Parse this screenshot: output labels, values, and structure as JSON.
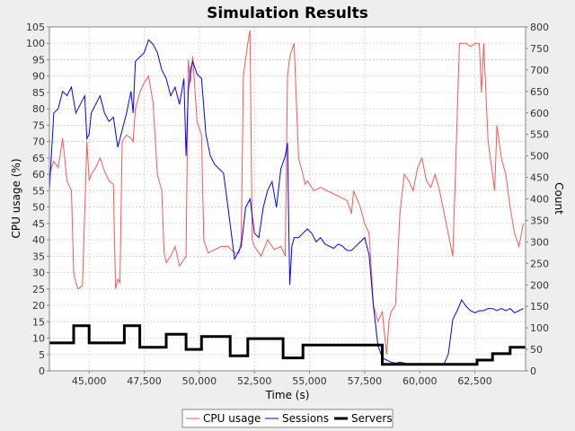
{
  "chart_data": {
    "type": "line",
    "title": "Simulation Results",
    "xlabel": "Time (s)",
    "ylabel_left": "CPU usage (%)",
    "ylabel_right": "Count",
    "xlim": [
      43200,
      64800
    ],
    "ylim_left": [
      0,
      105
    ],
    "ylim_right": [
      0,
      800
    ],
    "x_ticks": [
      "45,000",
      "47,500",
      "50,000",
      "52,500",
      "55,000",
      "57,500",
      "60,000",
      "62,500"
    ],
    "x_tick_values": [
      45000,
      47500,
      50000,
      52500,
      55000,
      57500,
      60000,
      62500
    ],
    "y_left_ticks": [
      "0",
      "5",
      "10",
      "15",
      "20",
      "25",
      "30",
      "35",
      "40",
      "45",
      "50",
      "55",
      "60",
      "65",
      "70",
      "75",
      "80",
      "85",
      "90",
      "95",
      "100",
      "105"
    ],
    "y_right_ticks": [
      "0",
      "50",
      "100",
      "150",
      "200",
      "250",
      "300",
      "350",
      "400",
      "450",
      "500",
      "550",
      "600",
      "650",
      "700",
      "750",
      "800"
    ],
    "grid": true,
    "legend_position": "bottom",
    "series": [
      {
        "name": "CPU usage",
        "color": "#ff5555",
        "axis": "left",
        "width": 1,
        "x": [
          43200,
          43400,
          43600,
          43800,
          44000,
          44200,
          44300,
          44400,
          44500,
          44700,
          44900,
          45000,
          45100,
          45300,
          45500,
          45700,
          45900,
          46100,
          46200,
          46300,
          46400,
          46500,
          46700,
          46900,
          47000,
          47100,
          47300,
          47500,
          47700,
          47900,
          48100,
          48300,
          48400,
          48500,
          48700,
          48900,
          49100,
          49300,
          49400,
          49500,
          49600,
          49700,
          49900,
          50100,
          50200,
          50300,
          50400,
          50700,
          51000,
          51300,
          51600,
          51800,
          51900,
          52000,
          52200,
          52300,
          52400,
          52500,
          52800,
          53100,
          53400,
          53700,
          53900,
          54000,
          54100,
          54300,
          54500,
          54700,
          54800,
          54900,
          55200,
          55500,
          55800,
          56100,
          56400,
          56700,
          56900,
          57000,
          57300,
          57500,
          57700,
          57900,
          58100,
          58300,
          58500,
          58600,
          58700,
          58900,
          59100,
          59300,
          59500,
          59700,
          59900,
          60100,
          60300,
          60500,
          60700,
          60900,
          61200,
          61500,
          61800,
          62100,
          62300,
          62500,
          62700,
          62800,
          62900,
          63100,
          63300,
          63400,
          63500,
          63700,
          63900,
          64100,
          64300,
          64500,
          64700
        ],
        "y": [
          60,
          64,
          62,
          71,
          58,
          55,
          30,
          27,
          25,
          26,
          70,
          58,
          60,
          62,
          65,
          61,
          58,
          57,
          25,
          28,
          27,
          70,
          72,
          71,
          70,
          80,
          85,
          88,
          90,
          82,
          60,
          55,
          36,
          33,
          35,
          38,
          32,
          34,
          35,
          95,
          88,
          96,
          76,
          72,
          40,
          38,
          36,
          37,
          38,
          38,
          36,
          36,
          40,
          90,
          100,
          104,
          40,
          38,
          35,
          40,
          37,
          38,
          35,
          90,
          96,
          100,
          65,
          60,
          57,
          58,
          55,
          56,
          55,
          54,
          53,
          52,
          48,
          55,
          50,
          45,
          42,
          20,
          15,
          18,
          5,
          15,
          18,
          20,
          48,
          60,
          58,
          55,
          62,
          65,
          58,
          56,
          60,
          55,
          45,
          35,
          100,
          100,
          99,
          100,
          100,
          85,
          100,
          70,
          60,
          55,
          75,
          65,
          60,
          50,
          42,
          38,
          45
        ],
        "x_stride": 1
      },
      {
        "name": "Sessions",
        "color": "#0000ff",
        "axis": "right",
        "width": 1,
        "x": [
          43200,
          43400,
          43600,
          43800,
          44000,
          44200,
          44400,
          44600,
          44800,
          44900,
          45000,
          45100,
          45300,
          45500,
          45700,
          45900,
          46100,
          46300,
          46500,
          46700,
          46900,
          47000,
          47100,
          47300,
          47500,
          47700,
          47900,
          48100,
          48300,
          48500,
          48700,
          48900,
          49100,
          49300,
          49400,
          49500,
          49600,
          49700,
          49900,
          50100,
          50300,
          50500,
          50700,
          50900,
          51100,
          51300,
          51500,
          51600,
          51700,
          51900,
          52100,
          52300,
          52500,
          52700,
          52900,
          53100,
          53300,
          53500,
          53700,
          53900,
          54000,
          54100,
          54200,
          54300,
          54500,
          54700,
          54900,
          55100,
          55300,
          55500,
          55700,
          55900,
          56100,
          56300,
          56500,
          56700,
          56900,
          57100,
          57300,
          57500,
          57700,
          57900,
          58100,
          58300,
          58500,
          58700,
          58900,
          59100,
          59300,
          59500,
          59700,
          59900,
          60100,
          60300,
          60500,
          60700,
          60900,
          61100,
          61300,
          61500,
          61700,
          61900,
          62100,
          62300,
          62500,
          62700,
          62900,
          63100,
          63300,
          63500,
          63700,
          63900,
          64100,
          64300,
          64500,
          64700
        ],
        "y": [
          420,
          600,
          610,
          650,
          640,
          660,
          600,
          620,
          640,
          540,
          550,
          600,
          620,
          640,
          600,
          580,
          590,
          520,
          560,
          600,
          650,
          600,
          720,
          730,
          740,
          770,
          760,
          740,
          700,
          680,
          640,
          660,
          620,
          680,
          500,
          650,
          700,
          720,
          690,
          680,
          550,
          500,
          480,
          470,
          460,
          380,
          300,
          260,
          270,
          290,
          380,
          400,
          320,
          310,
          380,
          420,
          440,
          380,
          470,
          500,
          530,
          200,
          290,
          310,
          310,
          320,
          330,
          320,
          300,
          310,
          295,
          290,
          285,
          295,
          290,
          280,
          280,
          290,
          300,
          310,
          270,
          150,
          60,
          30,
          25,
          20,
          18,
          20,
          18,
          15,
          14,
          16,
          15,
          15,
          14,
          15,
          15,
          15,
          40,
          120,
          140,
          165,
          150,
          140,
          135,
          140,
          140,
          145,
          145,
          140,
          145,
          140,
          145,
          135,
          140,
          145
        ],
        "x_stride": 1
      },
      {
        "name": "Servers",
        "color": "#000000",
        "axis": "right",
        "width": 3,
        "step": true,
        "x": [
          43200,
          44300,
          45000,
          46600,
          47300,
          48500,
          49400,
          50100,
          51400,
          52200,
          53800,
          54700,
          58300,
          61200,
          62600,
          63300,
          64100,
          64800
        ],
        "y": [
          65,
          105,
          65,
          105,
          55,
          85,
          50,
          80,
          35,
          75,
          30,
          60,
          15,
          15,
          25,
          40,
          55,
          55
        ]
      }
    ]
  }
}
